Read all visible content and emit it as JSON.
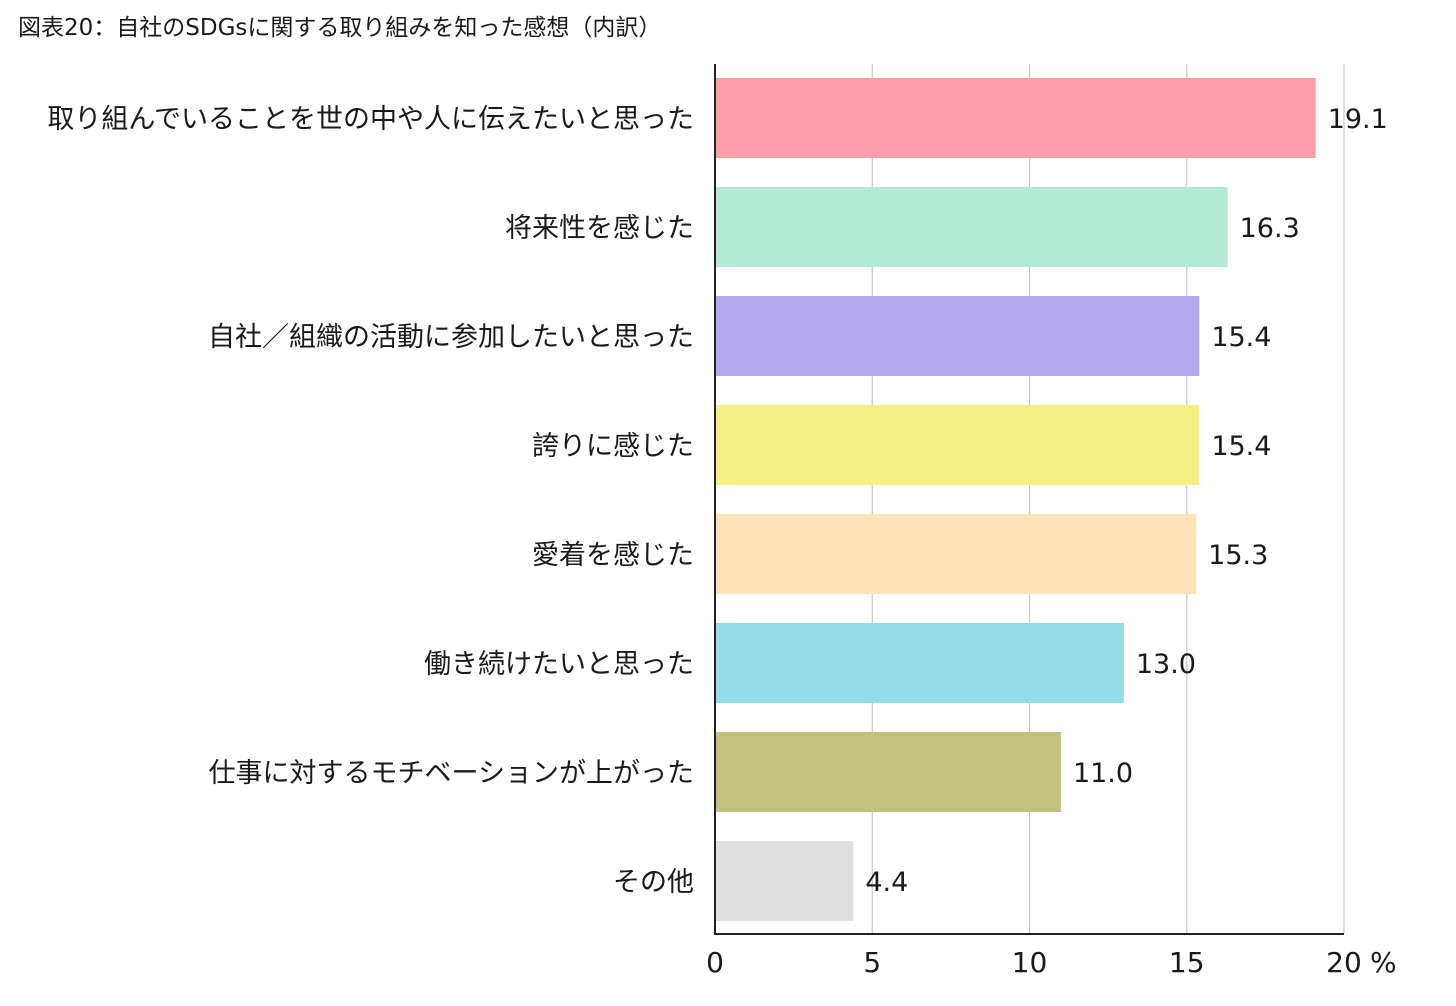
{
  "title": "図表20：自社のSDGsに関する取り組みを知った感想（内訳）",
  "chart_data": {
    "type": "bar",
    "orientation": "horizontal",
    "title": "図表20：自社のSDGsに関する取り組みを知った感想（内訳）",
    "categories": [
      "取り組んでいることを世の中や人に伝えたいと思った",
      "将来性を感じた",
      "自社／組織の活動に参加したいと思った",
      "誇りに感じた",
      "愛着を感じた",
      "働き続けたいと思った",
      "仕事に対するモチベーションが上がった",
      "その他"
    ],
    "values": [
      19.1,
      16.3,
      15.4,
      15.4,
      15.3,
      13.0,
      11.0,
      4.4
    ],
    "value_labels": [
      "19.1",
      "16.3",
      "15.4",
      "15.4",
      "15.3",
      "13.0",
      "11.0",
      "4.4"
    ],
    "colors": [
      "#ff9ea8",
      "#b3ead4",
      "#b4a9ee",
      "#f6f084",
      "#fde3b8",
      "#96dce8",
      "#c3c37f",
      "#e0e0e0"
    ],
    "xlim": [
      0,
      20
    ],
    "xticks": [
      0,
      5,
      10,
      15,
      20
    ],
    "xtick_labels": [
      "0",
      "5",
      "10",
      "15",
      "20"
    ],
    "unit": "%",
    "grid": true,
    "xlabel": "",
    "ylabel": ""
  }
}
